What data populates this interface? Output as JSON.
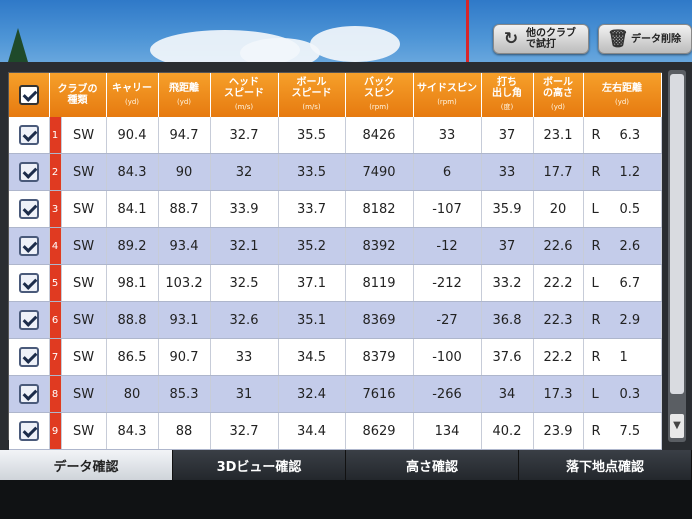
{
  "toolbar": {
    "retry_label_line1": "他のクラブ",
    "retry_label_line2": "で試打",
    "delete_label": "データ削除",
    "retry_icon": "refresh-icon",
    "delete_icon": "trash-icon"
  },
  "table": {
    "headers": [
      {
        "line1": "クラブの",
        "line2": "種類",
        "unit": ""
      },
      {
        "line1": "キャリー",
        "line2": "",
        "unit": "(yd)"
      },
      {
        "line1": "飛距離",
        "line2": "",
        "unit": "(yd)"
      },
      {
        "line1": "ヘッド",
        "line2": "スピード",
        "unit": "(m/s)"
      },
      {
        "line1": "ボール",
        "line2": "スピード",
        "unit": "(m/s)"
      },
      {
        "line1": "バック",
        "line2": "スピン",
        "unit": "(rpm)"
      },
      {
        "line1": "サイドスピン",
        "line2": "",
        "unit": "(rpm)"
      },
      {
        "line1": "打ち",
        "line2": "出し角",
        "unit": "(度)"
      },
      {
        "line1": "ボール",
        "line2": "の高さ",
        "unit": "(yd)"
      },
      {
        "line1": "左右距離",
        "line2": "",
        "unit": "(yd)"
      }
    ],
    "rows": [
      {
        "idx": "1",
        "club": "SW",
        "carry": "90.4",
        "total": "94.7",
        "head": "32.7",
        "ball": "35.5",
        "back": "8426",
        "side": "33",
        "launch": "37",
        "height": "23.1",
        "dir": "R",
        "lr": "6.3"
      },
      {
        "idx": "2",
        "club": "SW",
        "carry": "84.3",
        "total": "90",
        "head": "32",
        "ball": "33.5",
        "back": "7490",
        "side": "6",
        "launch": "33",
        "height": "17.7",
        "dir": "R",
        "lr": "1.2"
      },
      {
        "idx": "3",
        "club": "SW",
        "carry": "84.1",
        "total": "88.7",
        "head": "33.9",
        "ball": "33.7",
        "back": "8182",
        "side": "-107",
        "launch": "35.9",
        "height": "20",
        "dir": "L",
        "lr": "0.5"
      },
      {
        "idx": "4",
        "club": "SW",
        "carry": "89.2",
        "total": "93.4",
        "head": "32.1",
        "ball": "35.2",
        "back": "8392",
        "side": "-12",
        "launch": "37",
        "height": "22.6",
        "dir": "R",
        "lr": "2.6"
      },
      {
        "idx": "5",
        "club": "SW",
        "carry": "98.1",
        "total": "103.2",
        "head": "32.5",
        "ball": "37.1",
        "back": "8119",
        "side": "-212",
        "launch": "33.2",
        "height": "22.2",
        "dir": "L",
        "lr": "6.7"
      },
      {
        "idx": "6",
        "club": "SW",
        "carry": "88.8",
        "total": "93.1",
        "head": "32.6",
        "ball": "35.1",
        "back": "8369",
        "side": "-27",
        "launch": "36.8",
        "height": "22.3",
        "dir": "R",
        "lr": "2.9"
      },
      {
        "idx": "7",
        "club": "SW",
        "carry": "86.5",
        "total": "90.7",
        "head": "33",
        "ball": "34.5",
        "back": "8379",
        "side": "-100",
        "launch": "37.6",
        "height": "22.2",
        "dir": "R",
        "lr": "1"
      },
      {
        "idx": "8",
        "club": "SW",
        "carry": "80",
        "total": "85.3",
        "head": "31",
        "ball": "32.4",
        "back": "7616",
        "side": "-266",
        "launch": "34",
        "height": "17.3",
        "dir": "L",
        "lr": "0.3"
      },
      {
        "idx": "9",
        "club": "SW",
        "carry": "84.3",
        "total": "88",
        "head": "32.7",
        "ball": "34.4",
        "back": "8629",
        "side": "134",
        "launch": "40.2",
        "height": "23.9",
        "dir": "R",
        "lr": "7.5"
      }
    ]
  },
  "tabs": [
    "データ確認",
    "3Dビュー確認",
    "高さ確認",
    "落下地点確認"
  ],
  "active_tab": 0,
  "colors": {
    "header_orange": "#e67a10",
    "row_blue": "#c4ccea",
    "index_red": "#e03a21",
    "sky_blue": "#4e95d6"
  }
}
